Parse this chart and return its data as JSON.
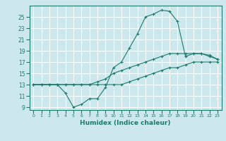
{
  "title": "",
  "xlabel": "Humidex (Indice chaleur)",
  "bg_color": "#cce8ec",
  "grid_color": "#ffffff",
  "line_color": "#1a7a6e",
  "x_hours": [
    0,
    1,
    2,
    3,
    4,
    5,
    6,
    7,
    8,
    9,
    10,
    11,
    12,
    13,
    14,
    15,
    16,
    17,
    18,
    19,
    20,
    21,
    22,
    23
  ],
  "line_max": [
    13,
    13,
    13,
    13,
    11.5,
    9,
    9.5,
    10.5,
    10.5,
    12.5,
    16,
    17,
    19.5,
    22,
    25,
    25.5,
    26.2,
    26,
    24.2,
    18,
    18.5,
    18.5,
    18.2,
    17.5
  ],
  "line_mean": [
    13,
    13,
    13,
    13,
    13,
    13,
    13,
    13,
    13.5,
    14,
    15,
    15.5,
    16,
    16.5,
    17,
    17.5,
    18,
    18.5,
    18.5,
    18.5,
    18.5,
    18.5,
    18,
    17.5
  ],
  "line_min": [
    13,
    13,
    13,
    13,
    13,
    13,
    13,
    13,
    13,
    13,
    13,
    13,
    13.5,
    14,
    14.5,
    15,
    15.5,
    16,
    16,
    16.5,
    17,
    17,
    17,
    17
  ],
  "ylim": [
    8.5,
    27
  ],
  "yticks": [
    9,
    11,
    13,
    15,
    17,
    19,
    21,
    23,
    25
  ],
  "xlim": [
    -0.5,
    23.5
  ],
  "figsize": [
    3.2,
    2.0
  ],
  "dpi": 100
}
